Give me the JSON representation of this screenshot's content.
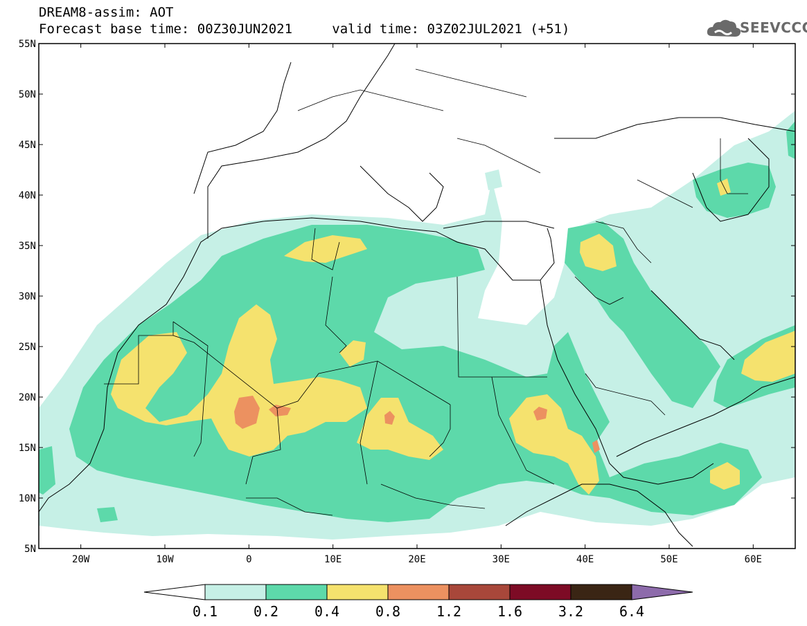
{
  "header": {
    "title": "DREAM8-assim: AOT",
    "base_label": "Forecast base time: 00Z30JUN2021",
    "valid_label": "valid time: 03Z02JUL2021 (+51)"
  },
  "logo": {
    "text": "SEEVCCC",
    "icon": "cloud-logo-icon",
    "color": "#6a6a6a"
  },
  "map": {
    "lon_range": [
      -25,
      65
    ],
    "lat_range": [
      5,
      55
    ],
    "lat_ticks": [
      "55N",
      "50N",
      "45N",
      "40N",
      "35N",
      "30N",
      "25N",
      "20N",
      "15N",
      "10N",
      "5N"
    ],
    "lon_ticks": [
      "20W",
      "10W",
      "0",
      "10E",
      "20E",
      "30E",
      "40E",
      "50E",
      "60E"
    ],
    "land_color": "#ffffff",
    "border_color": "#000000"
  },
  "colorbar": {
    "levels": [
      "0.1",
      "0.2",
      "0.4",
      "0.8",
      "1.2",
      "1.6",
      "3.2",
      "6.4"
    ],
    "colors": [
      "#c6f0e6",
      "#5dd9aa",
      "#f5e26e",
      "#ec9160",
      "#a8473a",
      "#7d0b25",
      "#3a2514",
      "#8d6bab"
    ]
  }
}
